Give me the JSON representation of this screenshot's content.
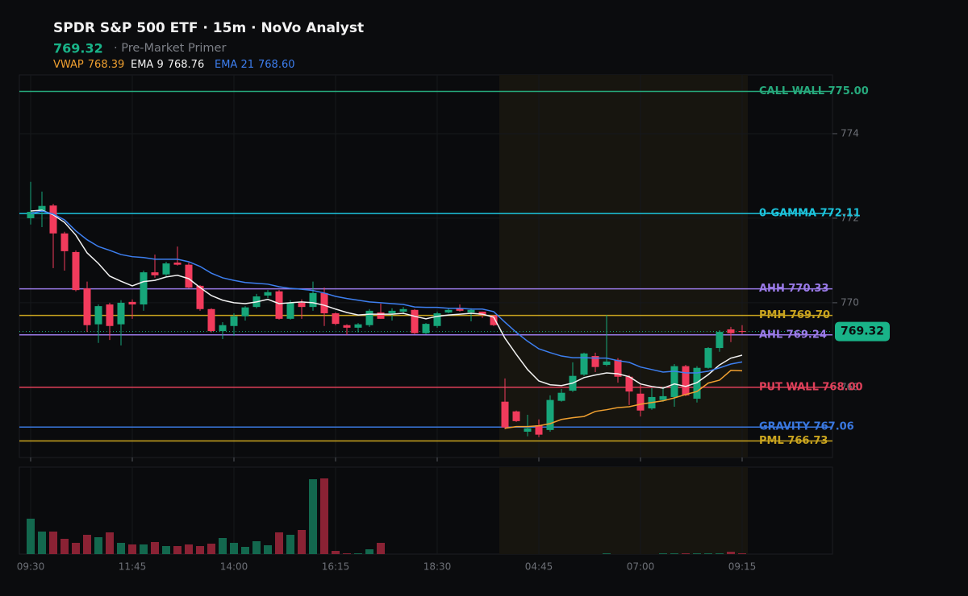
{
  "chart_data": {
    "type": "candlestick",
    "title": "SPDR S&P 500 ETF · 15m · NoVo Analyst",
    "subtitle": "· Pre-Market Primer",
    "last_price": 769.32,
    "categories": [
      "09:30",
      null,
      null,
      null,
      null,
      null,
      null,
      null,
      null,
      "11:45",
      null,
      null,
      null,
      null,
      null,
      null,
      null,
      null,
      "14:00",
      null,
      null,
      null,
      null,
      null,
      null,
      null,
      null,
      "16:15",
      null,
      null,
      null,
      null,
      null,
      null,
      null,
      null,
      "18:30",
      null,
      null,
      null,
      null,
      null,
      null,
      null,
      null,
      "04:45",
      null,
      null,
      null,
      null,
      null,
      null,
      null,
      null,
      "07:00",
      null,
      null,
      null,
      null,
      null,
      null,
      null,
      null,
      "09:15"
    ],
    "open": [
      772.0,
      772.17,
      772.3,
      771.64,
      771.2,
      770.34,
      769.49,
      769.96,
      769.49,
      770.02,
      769.96,
      770.72,
      770.67,
      770.95,
      770.9,
      770.4,
      769.85,
      769.33,
      769.45,
      769.68,
      769.9,
      770.17,
      770.27,
      769.62,
      770.0,
      769.9,
      770.23,
      769.75,
      769.47,
      769.41,
      769.47,
      769.77,
      769.75,
      769.79,
      769.83,
      769.28,
      769.45,
      769.77,
      769.87,
      769.77,
      769.79,
      769.7,
      767.66,
      767.43,
      766.95,
      767.1,
      766.99,
      767.68,
      767.92,
      768.3,
      768.74,
      768.53,
      768.65,
      768.25,
      767.85,
      767.5,
      767.7,
      767.77,
      768.5,
      767.73,
      768.46,
      768.93,
      769.37,
      769.33
    ],
    "high": [
      772.86,
      772.63,
      772.34,
      771.68,
      771.24,
      770.5,
      769.96,
      770.0,
      770.06,
      770.08,
      770.76,
      771.14,
      770.97,
      771.33,
      770.95,
      770.42,
      769.87,
      769.54,
      769.75,
      769.92,
      770.21,
      770.3,
      770.3,
      770.06,
      770.08,
      770.5,
      770.36,
      769.77,
      769.49,
      769.52,
      769.85,
      769.98,
      769.87,
      769.9,
      769.85,
      769.52,
      769.79,
      769.87,
      769.96,
      769.87,
      769.79,
      769.7,
      768.21,
      767.45,
      767.35,
      767.24,
      767.81,
      767.96,
      768.59,
      768.82,
      768.82,
      769.71,
      768.69,
      768.29,
      768.06,
      767.98,
      768.02,
      768.55,
      768.53,
      768.5,
      768.95,
      769.35,
      769.43,
      769.47
    ],
    "low": [
      771.85,
      771.79,
      770.82,
      770.76,
      770.27,
      769.31,
      769.05,
      769.12,
      768.99,
      769.62,
      769.81,
      770.59,
      770.63,
      770.88,
      770.34,
      769.81,
      769.3,
      769.14,
      769.22,
      769.58,
      769.87,
      770.11,
      769.6,
      769.6,
      769.62,
      769.81,
      769.45,
      769.47,
      769.24,
      769.3,
      769.43,
      769.62,
      769.58,
      769.73,
      769.26,
      769.26,
      769.41,
      769.75,
      769.79,
      769.56,
      769.64,
      769.45,
      767.01,
      767.18,
      766.84,
      766.82,
      766.95,
      767.66,
      767.89,
      768.27,
      768.36,
      768.5,
      768.11,
      767.58,
      767.31,
      767.47,
      767.66,
      767.54,
      767.79,
      767.64,
      768.44,
      768.84,
      769.07,
      769.26
    ],
    "close": [
      772.15,
      772.29,
      771.64,
      771.22,
      770.3,
      769.47,
      769.92,
      769.45,
      770.0,
      769.96,
      770.72,
      770.65,
      770.93,
      770.9,
      770.36,
      769.85,
      769.33,
      769.47,
      769.68,
      769.89,
      770.15,
      770.25,
      769.62,
      770.0,
      769.9,
      770.23,
      769.75,
      769.5,
      769.41,
      769.49,
      769.81,
      769.62,
      769.81,
      769.85,
      769.28,
      769.5,
      769.75,
      769.83,
      769.81,
      769.83,
      769.71,
      769.47,
      767.05,
      767.2,
      767.03,
      766.88,
      767.7,
      767.87,
      768.27,
      768.8,
      768.48,
      768.61,
      768.25,
      767.9,
      767.45,
      767.77,
      767.79,
      768.5,
      767.81,
      768.46,
      768.93,
      769.31,
      769.28,
      769.32
    ],
    "volume": [
      44,
      28,
      28,
      19,
      14,
      24,
      21,
      27,
      14,
      12,
      12,
      15,
      10,
      10,
      12,
      10,
      13,
      20,
      14,
      9,
      16,
      11,
      27,
      24,
      30,
      93,
      94,
      4,
      1,
      1,
      6,
      14,
      0,
      0,
      0,
      0,
      0,
      0,
      0,
      0,
      0,
      0,
      0,
      0,
      0,
      0,
      0,
      0,
      0,
      0,
      0,
      1,
      0,
      0,
      0,
      0,
      1,
      1,
      1,
      1,
      1,
      1,
      3,
      1
    ],
    "volume_ylim": [
      0,
      108
    ],
    "up_color": "#17a67a",
    "down_color": "#f23b5c",
    "ylim": [
      766.34,
      775.39
    ],
    "yticks": [
      774,
      772,
      770,
      768
    ],
    "grid": true,
    "series": [
      {
        "name": "VWAP",
        "color": "#f0a030",
        "last_label": "768.39",
        "values": [
          null,
          null,
          null,
          null,
          null,
          null,
          null,
          null,
          null,
          null,
          null,
          null,
          null,
          null,
          null,
          null,
          null,
          null,
          null,
          null,
          null,
          null,
          null,
          null,
          null,
          null,
          null,
          null,
          null,
          null,
          null,
          null,
          null,
          null,
          null,
          null,
          null,
          null,
          null,
          null,
          null,
          null,
          767.03,
          767.07,
          767.07,
          767.09,
          767.14,
          767.24,
          767.28,
          767.31,
          767.43,
          767.47,
          767.52,
          767.54,
          767.6,
          767.64,
          767.68,
          767.75,
          767.83,
          767.9,
          768.1,
          768.17,
          768.4,
          768.39
        ]
      },
      {
        "name": "EMA 9",
        "color": "#f2f2f2",
        "last_label": "768.76",
        "values": [
          772.17,
          772.19,
          772.08,
          771.9,
          771.6,
          771.18,
          770.93,
          770.63,
          770.51,
          770.4,
          770.5,
          770.53,
          770.61,
          770.65,
          770.57,
          770.36,
          770.17,
          770.06,
          770.0,
          769.98,
          770.02,
          770.08,
          769.98,
          770.0,
          770.02,
          770.0,
          769.94,
          769.85,
          769.77,
          769.71,
          769.73,
          769.73,
          769.73,
          769.75,
          769.68,
          769.62,
          769.68,
          769.71,
          769.73,
          769.75,
          769.73,
          769.66,
          769.16,
          768.78,
          768.42,
          768.15,
          768.06,
          768.04,
          768.1,
          768.23,
          768.29,
          768.34,
          768.32,
          768.25,
          768.08,
          768.02,
          767.98,
          768.08,
          768.02,
          768.11,
          768.3,
          768.53,
          768.69,
          768.76
        ]
      },
      {
        "name": "EMA 21",
        "color": "#3d7ff0",
        "last_label": "768.60",
        "values": [
          772.11,
          772.17,
          772.1,
          771.96,
          771.7,
          771.49,
          771.33,
          771.24,
          771.14,
          771.09,
          771.07,
          771.03,
          771.03,
          771.03,
          770.97,
          770.86,
          770.7,
          770.59,
          770.53,
          770.48,
          770.46,
          770.44,
          770.38,
          770.34,
          770.32,
          770.29,
          770.23,
          770.15,
          770.1,
          770.06,
          770.02,
          770.0,
          769.98,
          769.96,
          769.9,
          769.89,
          769.89,
          769.87,
          769.87,
          769.85,
          769.85,
          769.79,
          769.54,
          769.3,
          769.09,
          768.91,
          768.82,
          768.74,
          768.7,
          768.7,
          768.69,
          768.69,
          768.63,
          768.59,
          768.48,
          768.42,
          768.36,
          768.38,
          768.34,
          768.34,
          768.38,
          768.46,
          768.55,
          768.6
        ]
      }
    ],
    "levels": [
      {
        "label": "CALL WALL 775.00",
        "value": 775.0,
        "color": "#26a97c"
      },
      {
        "label": "0-GAMMA 772.11",
        "value": 772.11,
        "color": "#1cc4dc"
      },
      {
        "label": "AHH 770.33",
        "value": 770.33,
        "color": "#9a7ae8"
      },
      {
        "label": "PMH 769.70",
        "value": 769.7,
        "color": "#c9a41f"
      },
      {
        "label": "AHL 769.24",
        "value": 769.24,
        "color": "#9a7ae8"
      },
      {
        "label": "PUT WALL 768.00",
        "value": 768.0,
        "color": "#e0405a"
      },
      {
        "label": "GRAVITY 767.06",
        "value": 767.06,
        "color": "#3a78e0"
      },
      {
        "label": "PML 766.73",
        "value": 766.73,
        "color": "#c9a41f"
      }
    ]
  }
}
